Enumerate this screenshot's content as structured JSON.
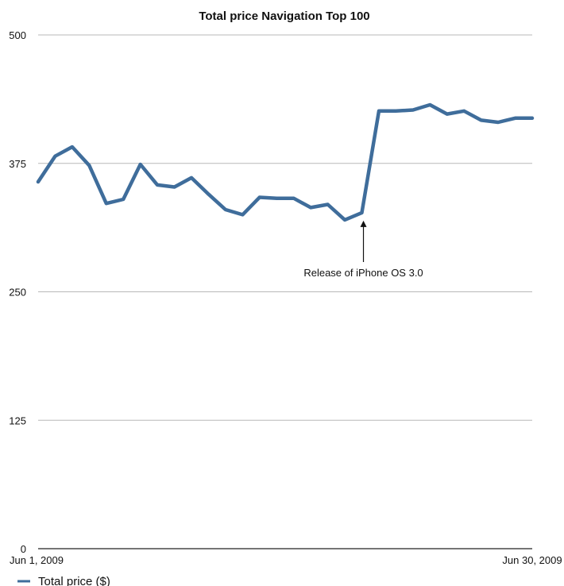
{
  "chart_data": {
    "type": "line",
    "title": "Total price Navigation Top 100",
    "xlabel": "",
    "ylabel": "",
    "x": [
      "2009-06-01",
      "2009-06-02",
      "2009-06-03",
      "2009-06-04",
      "2009-06-05",
      "2009-06-06",
      "2009-06-07",
      "2009-06-08",
      "2009-06-09",
      "2009-06-10",
      "2009-06-11",
      "2009-06-12",
      "2009-06-13",
      "2009-06-14",
      "2009-06-15",
      "2009-06-16",
      "2009-06-17",
      "2009-06-18",
      "2009-06-19",
      "2009-06-20",
      "2009-06-21",
      "2009-06-22",
      "2009-06-23",
      "2009-06-24",
      "2009-06-25",
      "2009-06-26",
      "2009-06-27",
      "2009-06-28",
      "2009-06-29",
      "2009-06-30"
    ],
    "x_tick_labels": [
      "Jun 1, 2009",
      "Jun 30, 2009"
    ],
    "ylim": [
      0,
      500
    ],
    "y_ticks": [
      0,
      125,
      250,
      375,
      500
    ],
    "grid": true,
    "legend_position": "bottom-left",
    "series": [
      {
        "name": "Total price ($)",
        "color": "#3f6d9b",
        "values": [
          357,
          382,
          391,
          373,
          336,
          340,
          374,
          354,
          352,
          361,
          345,
          330,
          325,
          342,
          341,
          341,
          332,
          335,
          320,
          327,
          426,
          426,
          427,
          432,
          423,
          426,
          417,
          415,
          419,
          419
        ]
      }
    ],
    "annotations": [
      {
        "text": "Release of iPhone OS 3.0",
        "x": "2009-06-20",
        "y": 327
      }
    ]
  }
}
